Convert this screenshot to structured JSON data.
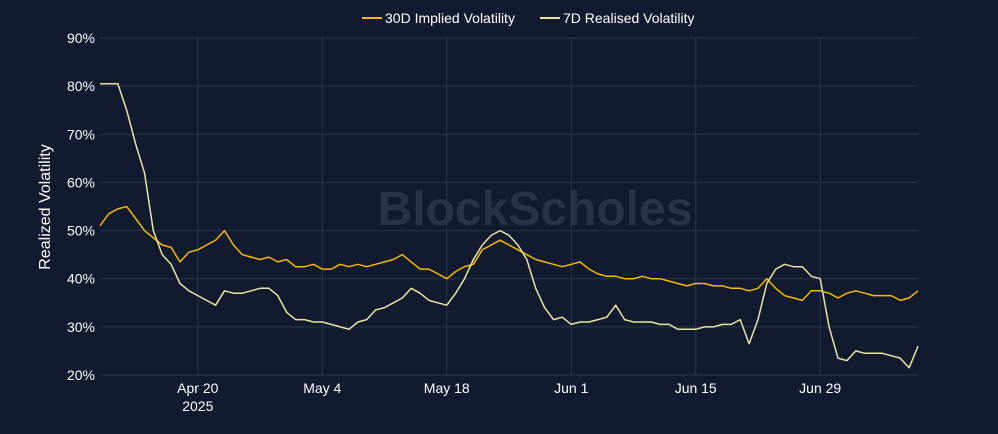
{
  "chart_data": {
    "type": "line",
    "title": "",
    "watermark": "BlockScholes",
    "xlabel": "",
    "ylabel": "Realized Volatility",
    "x_range": [
      "2025-04-09",
      "2025-07-10"
    ],
    "ylim": [
      20,
      90
    ],
    "y_tick_labels": [
      "20%",
      "30%",
      "40%",
      "50%",
      "60%",
      "70%",
      "80%",
      "90%"
    ],
    "x_ticks": [
      {
        "date": "2025-04-20",
        "label": "Apr 20",
        "sublabel": "2025"
      },
      {
        "date": "2025-05-04",
        "label": "May 4",
        "sublabel": ""
      },
      {
        "date": "2025-05-18",
        "label": "May 18",
        "sublabel": ""
      },
      {
        "date": "2025-06-01",
        "label": "Jun 1",
        "sublabel": ""
      },
      {
        "date": "2025-06-15",
        "label": "Jun 15",
        "sublabel": ""
      },
      {
        "date": "2025-06-29",
        "label": "Jun 29",
        "sublabel": ""
      }
    ],
    "grid": true,
    "legend_position": "top-center",
    "series": [
      {
        "name": "30D Implied Volatility",
        "color": "#f5b800",
        "points": [
          [
            "2025-04-09",
            51
          ],
          [
            "2025-04-10",
            53.5
          ],
          [
            "2025-04-11",
            54.5
          ],
          [
            "2025-04-12",
            55
          ],
          [
            "2025-04-13",
            52.5
          ],
          [
            "2025-04-14",
            50
          ],
          [
            "2025-04-15",
            48.5
          ],
          [
            "2025-04-16",
            47
          ],
          [
            "2025-04-17",
            46.5
          ],
          [
            "2025-04-18",
            43.5
          ],
          [
            "2025-04-19",
            45.5
          ],
          [
            "2025-04-20",
            46
          ],
          [
            "2025-04-21",
            47
          ],
          [
            "2025-04-22",
            48
          ],
          [
            "2025-04-23",
            50
          ],
          [
            "2025-04-24",
            47
          ],
          [
            "2025-04-25",
            45
          ],
          [
            "2025-04-26",
            44.5
          ],
          [
            "2025-04-27",
            44
          ],
          [
            "2025-04-28",
            44.5
          ],
          [
            "2025-04-29",
            43.5
          ],
          [
            "2025-04-30",
            44
          ],
          [
            "2025-05-01",
            42.5
          ],
          [
            "2025-05-02",
            42.5
          ],
          [
            "2025-05-03",
            43
          ],
          [
            "2025-05-04",
            42
          ],
          [
            "2025-05-05",
            42
          ],
          [
            "2025-05-06",
            43
          ],
          [
            "2025-05-07",
            42.5
          ],
          [
            "2025-05-08",
            43
          ],
          [
            "2025-05-09",
            42.5
          ],
          [
            "2025-05-10",
            43
          ],
          [
            "2025-05-11",
            43.5
          ],
          [
            "2025-05-12",
            44
          ],
          [
            "2025-05-13",
            45
          ],
          [
            "2025-05-14",
            43.5
          ],
          [
            "2025-05-15",
            42
          ],
          [
            "2025-05-16",
            42
          ],
          [
            "2025-05-17",
            41
          ],
          [
            "2025-05-18",
            40
          ],
          [
            "2025-05-19",
            41.5
          ],
          [
            "2025-05-20",
            42.5
          ],
          [
            "2025-05-21",
            43
          ],
          [
            "2025-05-22",
            46
          ],
          [
            "2025-05-23",
            47
          ],
          [
            "2025-05-24",
            48
          ],
          [
            "2025-05-25",
            47
          ],
          [
            "2025-05-26",
            46
          ],
          [
            "2025-05-27",
            45
          ],
          [
            "2025-05-28",
            44
          ],
          [
            "2025-05-29",
            43.5
          ],
          [
            "2025-05-30",
            43
          ],
          [
            "2025-05-31",
            42.5
          ],
          [
            "2025-06-01",
            43
          ],
          [
            "2025-06-02",
            43.5
          ],
          [
            "2025-06-03",
            42
          ],
          [
            "2025-06-04",
            41
          ],
          [
            "2025-06-05",
            40.5
          ],
          [
            "2025-06-06",
            40.5
          ],
          [
            "2025-06-07",
            40
          ],
          [
            "2025-06-08",
            40
          ],
          [
            "2025-06-09",
            40.5
          ],
          [
            "2025-06-10",
            40
          ],
          [
            "2025-06-11",
            40
          ],
          [
            "2025-06-12",
            39.5
          ],
          [
            "2025-06-13",
            39
          ],
          [
            "2025-06-14",
            38.5
          ],
          [
            "2025-06-15",
            39
          ],
          [
            "2025-06-16",
            39
          ],
          [
            "2025-06-17",
            38.5
          ],
          [
            "2025-06-18",
            38.5
          ],
          [
            "2025-06-19",
            38
          ],
          [
            "2025-06-20",
            38
          ],
          [
            "2025-06-21",
            37.5
          ],
          [
            "2025-06-22",
            38
          ],
          [
            "2025-06-23",
            40
          ],
          [
            "2025-06-24",
            38
          ],
          [
            "2025-06-25",
            36.5
          ],
          [
            "2025-06-26",
            36
          ],
          [
            "2025-06-27",
            35.5
          ],
          [
            "2025-06-28",
            37.5
          ],
          [
            "2025-06-29",
            37.5
          ],
          [
            "2025-06-30",
            37
          ],
          [
            "2025-07-01",
            36
          ],
          [
            "2025-07-02",
            37
          ],
          [
            "2025-07-03",
            37.5
          ],
          [
            "2025-07-04",
            37
          ],
          [
            "2025-07-05",
            36.5
          ],
          [
            "2025-07-06",
            36.5
          ],
          [
            "2025-07-07",
            36.5
          ],
          [
            "2025-07-08",
            35.5
          ],
          [
            "2025-07-09",
            36
          ],
          [
            "2025-07-10",
            37.5
          ]
        ]
      },
      {
        "name": "7D Realised Volatility",
        "color": "#e6e6a2",
        "points": [
          [
            "2025-04-09",
            80.5
          ],
          [
            "2025-04-10",
            80.5
          ],
          [
            "2025-04-11",
            80.5
          ],
          [
            "2025-04-12",
            75
          ],
          [
            "2025-04-13",
            68
          ],
          [
            "2025-04-14",
            62
          ],
          [
            "2025-04-15",
            50
          ],
          [
            "2025-04-16",
            45
          ],
          [
            "2025-04-17",
            43
          ],
          [
            "2025-04-18",
            39
          ],
          [
            "2025-04-19",
            37.5
          ],
          [
            "2025-04-20",
            36.5
          ],
          [
            "2025-04-21",
            35.5
          ],
          [
            "2025-04-22",
            34.5
          ],
          [
            "2025-04-23",
            37.5
          ],
          [
            "2025-04-24",
            37
          ],
          [
            "2025-04-25",
            37
          ],
          [
            "2025-04-26",
            37.5
          ],
          [
            "2025-04-27",
            38
          ],
          [
            "2025-04-28",
            38
          ],
          [
            "2025-04-29",
            36.5
          ],
          [
            "2025-04-30",
            33
          ],
          [
            "2025-05-01",
            31.5
          ],
          [
            "2025-05-02",
            31.5
          ],
          [
            "2025-05-03",
            31
          ],
          [
            "2025-05-04",
            31
          ],
          [
            "2025-05-05",
            30.5
          ],
          [
            "2025-05-06",
            30
          ],
          [
            "2025-05-07",
            29.5
          ],
          [
            "2025-05-08",
            31
          ],
          [
            "2025-05-09",
            31.5
          ],
          [
            "2025-05-10",
            33.5
          ],
          [
            "2025-05-11",
            34
          ],
          [
            "2025-05-12",
            35
          ],
          [
            "2025-05-13",
            36
          ],
          [
            "2025-05-14",
            38
          ],
          [
            "2025-05-15",
            37
          ],
          [
            "2025-05-16",
            35.5
          ],
          [
            "2025-05-17",
            35
          ],
          [
            "2025-05-18",
            34.5
          ],
          [
            "2025-05-19",
            37
          ],
          [
            "2025-05-20",
            40
          ],
          [
            "2025-05-21",
            44
          ],
          [
            "2025-05-22",
            47
          ],
          [
            "2025-05-23",
            49
          ],
          [
            "2025-05-24",
            50
          ],
          [
            "2025-05-25",
            49
          ],
          [
            "2025-05-26",
            47
          ],
          [
            "2025-05-27",
            44
          ],
          [
            "2025-05-28",
            38
          ],
          [
            "2025-05-29",
            34
          ],
          [
            "2025-05-30",
            31.5
          ],
          [
            "2025-05-31",
            32
          ],
          [
            "2025-06-01",
            30.5
          ],
          [
            "2025-06-02",
            31
          ],
          [
            "2025-06-03",
            31
          ],
          [
            "2025-06-04",
            31.5
          ],
          [
            "2025-06-05",
            32
          ],
          [
            "2025-06-06",
            34.5
          ],
          [
            "2025-06-07",
            31.5
          ],
          [
            "2025-06-08",
            31
          ],
          [
            "2025-06-09",
            31
          ],
          [
            "2025-06-10",
            31
          ],
          [
            "2025-06-11",
            30.5
          ],
          [
            "2025-06-12",
            30.5
          ],
          [
            "2025-06-13",
            29.5
          ],
          [
            "2025-06-14",
            29.5
          ],
          [
            "2025-06-15",
            29.5
          ],
          [
            "2025-06-16",
            30
          ],
          [
            "2025-06-17",
            30
          ],
          [
            "2025-06-18",
            30.5
          ],
          [
            "2025-06-19",
            30.5
          ],
          [
            "2025-06-20",
            31.5
          ],
          [
            "2025-06-21",
            26.5
          ],
          [
            "2025-06-22",
            31.5
          ],
          [
            "2025-06-23",
            39
          ],
          [
            "2025-06-24",
            42
          ],
          [
            "2025-06-25",
            43
          ],
          [
            "2025-06-26",
            42.5
          ],
          [
            "2025-06-27",
            42.5
          ],
          [
            "2025-06-28",
            40.5
          ],
          [
            "2025-06-29",
            40
          ],
          [
            "2025-06-30",
            30
          ],
          [
            "2025-07-01",
            23.5
          ],
          [
            "2025-07-02",
            23
          ],
          [
            "2025-07-03",
            25
          ],
          [
            "2025-07-04",
            24.5
          ],
          [
            "2025-07-05",
            24.5
          ],
          [
            "2025-07-06",
            24.5
          ],
          [
            "2025-07-07",
            24
          ],
          [
            "2025-07-08",
            23.5
          ],
          [
            "2025-07-09",
            21.5
          ],
          [
            "2025-07-10",
            26
          ]
        ]
      }
    ]
  }
}
